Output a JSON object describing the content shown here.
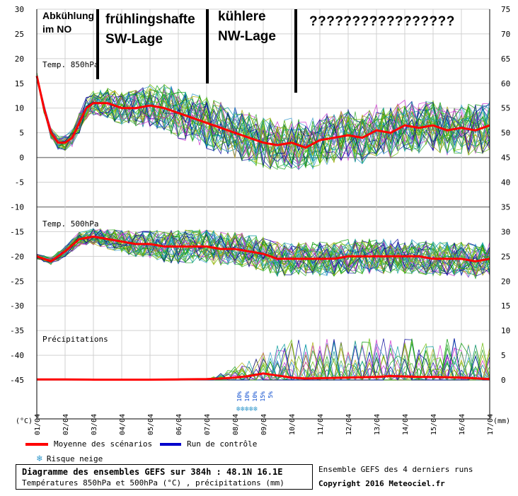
{
  "annotations": [
    {
      "text": "Abkühlung\nim NO"
    },
    {
      "text": "frühlingshafte\nSW-Lage"
    },
    {
      "text": "kühlere\nNW-Lage"
    },
    {
      "text": "?????????????????"
    }
  ],
  "panels": {
    "t850_label": "Temp. 850hPa",
    "t500_label": "Temp. 500hPa",
    "precip_label": "Précipitations"
  },
  "axis_units": {
    "left": "(°C)",
    "right": "(mm)"
  },
  "snow_chances": [
    "10%",
    "10%",
    "10%",
    "15%",
    "5%"
  ],
  "legend": {
    "mean_label": "Moyenne des scénarios",
    "control_label": "Run de contrôle",
    "snow_label": "Risque neige"
  },
  "footer": {
    "title": "Diagramme des ensembles GEFS sur 384h : 48.1N 16.1E",
    "subtitle": "Températures 850hPa et 500hPa (°C) , précipitations (mm)",
    "runs": "Ensemble GEFS des 4 derniers runs",
    "copyright": "Copyright 2016 Meteociel.fr"
  },
  "colors": {
    "mean": "#ff0000",
    "control": "#0000cc",
    "members": [
      "#009900",
      "#33aa33",
      "#aaaa00",
      "#cc33cc",
      "#009999",
      "#3399cc",
      "#66bb00",
      "#000099"
    ]
  },
  "chart_data": {
    "type": "line",
    "title": "Diagramme des ensembles GEFS sur 384h : 48.1N 16.1E",
    "x_ticks": [
      "01/04",
      "02/04",
      "03/04",
      "04/04",
      "05/04",
      "06/04",
      "07/04",
      "08/04",
      "09/04",
      "10/04",
      "11/04",
      "12/04",
      "13/04",
      "14/04",
      "15/04",
      "16/04",
      "17/04"
    ],
    "y_left": {
      "label": "(°C)",
      "ticks": [
        30,
        25,
        20,
        15,
        10,
        5,
        0,
        -5,
        -10,
        -15,
        -20,
        -25,
        -30,
        -35,
        -40,
        -45
      ]
    },
    "y_right": {
      "label": "(mm)",
      "ticks": [
        75,
        70,
        65,
        60,
        55,
        50,
        45,
        40,
        35,
        30,
        25,
        20,
        15,
        10,
        5,
        0
      ]
    },
    "grid": true,
    "series": [
      {
        "name": "Temp. 850hPa - Moyenne des scénarios",
        "x": [
          0,
          0.25,
          0.5,
          0.75,
          1,
          1.25,
          1.5,
          1.75,
          2,
          2.25,
          2.5,
          2.75,
          3,
          3.5,
          4,
          4.5,
          5,
          5.5,
          6,
          6.5,
          7,
          7.5,
          8,
          8.5,
          9,
          9.5,
          10,
          10.5,
          11,
          11.5,
          12,
          12.5,
          13,
          13.5,
          14,
          14.5,
          15,
          15.5,
          16
        ],
        "values": [
          16.5,
          10,
          5,
          3,
          3,
          4,
          7,
          10,
          11,
          11,
          11,
          10.5,
          10,
          10,
          10.5,
          10,
          9,
          8,
          7,
          6,
          5,
          4,
          3,
          2.5,
          3,
          2,
          3.5,
          4,
          4.5,
          4,
          5.5,
          5,
          6.5,
          6,
          6.5,
          5.5,
          6,
          5.5,
          6.5
        ]
      },
      {
        "name": "Temp. 500hPa - Moyenne des scénarios",
        "x": [
          0,
          0.5,
          1,
          1.5,
          2,
          2.5,
          3,
          3.5,
          4,
          4.5,
          5,
          5.5,
          6,
          6.5,
          7,
          7.5,
          8,
          8.5,
          9,
          9.5,
          10,
          10.5,
          11,
          11.5,
          12,
          12.5,
          13,
          13.5,
          14,
          14.5,
          15,
          15.5,
          16
        ],
        "values": [
          -20,
          -21,
          -19,
          -16.5,
          -16,
          -16.5,
          -17,
          -17.5,
          -17.5,
          -18,
          -18,
          -18,
          -18,
          -18.5,
          -18.5,
          -19,
          -19.5,
          -20.5,
          -20.5,
          -20.5,
          -20.5,
          -20.5,
          -20,
          -20,
          -20,
          -20,
          -20,
          -20,
          -20.5,
          -20.5,
          -20.5,
          -21,
          -20.5
        ]
      },
      {
        "name": "Précipitations - Moyenne des scénarios (mm)",
        "x": [
          0,
          1,
          2,
          3,
          4,
          5,
          6,
          6.5,
          7,
          7.5,
          8,
          8.5,
          9,
          9.5,
          10,
          11,
          12,
          12.5,
          13,
          13.5,
          14,
          15,
          16
        ],
        "values": [
          0.2,
          0.2,
          0.1,
          0.1,
          0.1,
          0.2,
          0.3,
          0.5,
          0.8,
          1.3,
          2.2,
          1.5,
          0.8,
          0.5,
          0.6,
          0.8,
          1,
          1.3,
          1.2,
          1,
          1,
          0.8,
          0.3
        ]
      }
    ]
  }
}
